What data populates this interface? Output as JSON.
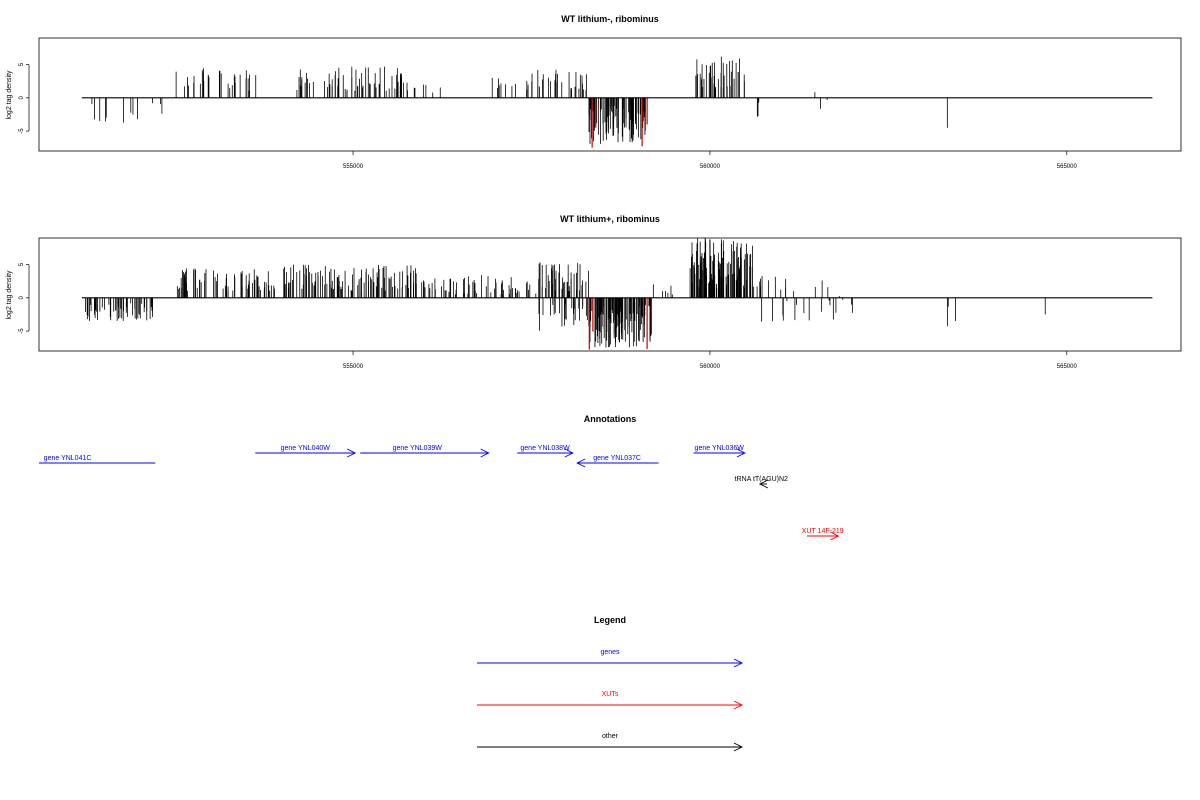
{
  "chart_data": [
    {
      "type": "bar",
      "title": "WT lithium-, ribominus",
      "xlabel": "",
      "ylabel": "log2 tag density",
      "xlim": [
        550600,
        566600
      ],
      "ylim": [
        -8,
        9
      ],
      "xticks": [
        555000,
        560000,
        565000
      ],
      "yticks": [
        -5,
        0,
        5
      ],
      "xtick_labels": [
        "555000",
        "560000",
        "565000"
      ],
      "ytick_labels": [
        "-5",
        "0",
        "5"
      ],
      "baseline_range": [
        551200,
        566200
      ],
      "colors": {
        "signal": "#000000",
        "highlight": "#cc0000"
      },
      "segments": [
        {
          "start": 551300,
          "end": 551600,
          "n": 5,
          "min": -3.8,
          "max": -0.8,
          "seed": 1
        },
        {
          "start": 551700,
          "end": 552000,
          "n": 4,
          "min": -4.0,
          "max": -1.0,
          "seed": 2
        },
        {
          "start": 552100,
          "end": 552400,
          "n": 3,
          "min": -2.5,
          "max": -0.8,
          "seed": 3
        },
        {
          "start": 552500,
          "end": 553700,
          "n": 30,
          "min": 1.0,
          "max": 4.5,
          "seed": 4
        },
        {
          "start": 554200,
          "end": 555800,
          "n": 65,
          "min": 1.0,
          "max": 4.7,
          "seed": 5
        },
        {
          "start": 555800,
          "end": 556400,
          "n": 6,
          "min": 0.5,
          "max": 2.5,
          "seed": 6
        },
        {
          "start": 556800,
          "end": 557500,
          "n": 12,
          "min": 0.8,
          "max": 3.0,
          "seed": 7
        },
        {
          "start": 557500,
          "end": 558300,
          "n": 28,
          "min": 0.8,
          "max": 4.3,
          "seed": 8
        },
        {
          "start": 558300,
          "end": 559100,
          "n": 90,
          "min": -7.0,
          "max": -1.0,
          "seed": 9
        },
        {
          "start": 559800,
          "end": 560500,
          "n": 40,
          "min": 1.0,
          "max": 6.3,
          "seed": 10
        },
        {
          "start": 560650,
          "end": 560700,
          "n": 3,
          "min": -3.5,
          "max": -0.5,
          "seed": 11
        },
        {
          "start": 561400,
          "end": 561700,
          "n": 3,
          "min": -2.5,
          "max": 2.8,
          "seed": 12
        },
        {
          "start": 563300,
          "end": 563350,
          "n": 1,
          "min": -4.5,
          "max": -4.5,
          "seed": 13
        }
      ],
      "highlights": [
        {
          "x": 558350,
          "y": -7.5
        },
        {
          "x": 558400,
          "y": -4.5
        },
        {
          "x": 559050,
          "y": -7.3
        },
        {
          "x": 559120,
          "y": -4.0
        }
      ]
    },
    {
      "type": "bar",
      "title": "WT lithium+, ribominus",
      "xlabel": "",
      "ylabel": "log2 tag density",
      "xlim": [
        550600,
        566600
      ],
      "ylim": [
        -8,
        9
      ],
      "xticks": [
        555000,
        560000,
        565000
      ],
      "yticks": [
        -5,
        0,
        5
      ],
      "xtick_labels": [
        "555000",
        "560000",
        "565000"
      ],
      "ytick_labels": [
        "-5",
        "0",
        "5"
      ],
      "baseline_range": [
        551200,
        566200
      ],
      "colors": {
        "signal": "#000000",
        "highlight": "#cc0000"
      },
      "segments": [
        {
          "start": 551250,
          "end": 552200,
          "n": 55,
          "min": -3.5,
          "max": -0.8,
          "seed": 21
        },
        {
          "start": 552500,
          "end": 553900,
          "n": 70,
          "min": 1.0,
          "max": 4.5,
          "seed": 22
        },
        {
          "start": 554000,
          "end": 555900,
          "n": 110,
          "min": 1.0,
          "max": 5.0,
          "seed": 23
        },
        {
          "start": 555900,
          "end": 557600,
          "n": 60,
          "min": 0.5,
          "max": 3.5,
          "seed": 24
        },
        {
          "start": 557600,
          "end": 558300,
          "n": 45,
          "min": 1.0,
          "max": 5.5,
          "seed": 25
        },
        {
          "start": 557600,
          "end": 558300,
          "n": 25,
          "min": -5.0,
          "max": -1.0,
          "seed": 26
        },
        {
          "start": 558300,
          "end": 559200,
          "n": 110,
          "min": -7.5,
          "max": -1.0,
          "seed": 27
        },
        {
          "start": 559200,
          "end": 559500,
          "n": 6,
          "min": 0.5,
          "max": 2.5,
          "seed": 28
        },
        {
          "start": 559700,
          "end": 560600,
          "n": 120,
          "min": 1.5,
          "max": 9.0,
          "seed": 29
        },
        {
          "start": 560600,
          "end": 561800,
          "n": 30,
          "min": -4.0,
          "max": 3.5,
          "seed": 30
        },
        {
          "start": 561800,
          "end": 562000,
          "n": 4,
          "min": -3.5,
          "max": 3.0,
          "seed": 31
        },
        {
          "start": 563300,
          "end": 563450,
          "n": 3,
          "min": -4.5,
          "max": -1.0,
          "seed": 32
        },
        {
          "start": 564650,
          "end": 564700,
          "n": 1,
          "min": -2.5,
          "max": -2.5,
          "seed": 33
        }
      ],
      "highlights": [
        {
          "x": 558310,
          "y": -7.8
        },
        {
          "x": 558360,
          "y": -5.0
        },
        {
          "x": 559120,
          "y": -7.7
        },
        {
          "x": 559180,
          "y": -5.5
        }
      ]
    }
  ],
  "annotations": {
    "title": "Annotations",
    "items": [
      {
        "label": "gene YNL041C",
        "start": 550600,
        "end": 552230,
        "direction": "none",
        "color": "#0000ff",
        "row": 1,
        "label_x": 551000
      },
      {
        "label": "gene YNL040W",
        "start": 553630,
        "end": 555030,
        "direction": "right",
        "color": "#0000ff",
        "row": 0,
        "label_x": 554330
      },
      {
        "label": "gene YNL039W",
        "start": 555100,
        "end": 556900,
        "direction": "right",
        "color": "#0000ff",
        "row": 0,
        "label_x": 555900
      },
      {
        "label": "gene YNL038W",
        "start": 557300,
        "end": 558080,
        "direction": "right",
        "color": "#0000ff",
        "row": 0,
        "label_x": 557690
      },
      {
        "label": "gene YNL037C",
        "start": 558140,
        "end": 559280,
        "direction": "left",
        "color": "#0000ff",
        "row": 1,
        "label_x": 558700
      },
      {
        "label": "gene YNL036W",
        "start": 559770,
        "end": 560490,
        "direction": "right",
        "color": "#0000ff",
        "row": 0,
        "label_x": 560130
      },
      {
        "label": "tRNA tT(AGU)N2",
        "start": 560700,
        "end": 560800,
        "direction": "left",
        "color": "#000000",
        "row": 2,
        "label_x": 560720
      },
      {
        "label": "XUT 14F-219",
        "start": 561360,
        "end": 561800,
        "direction": "right",
        "color": "#ff0000",
        "row": 4,
        "label_x": 561580
      }
    ]
  },
  "legend": {
    "title": "Legend",
    "items": [
      {
        "label": "genes",
        "color": "#0000ff"
      },
      {
        "label": "XUTs",
        "color": "#ff0000"
      },
      {
        "label": "other",
        "color": "#000000"
      }
    ]
  }
}
